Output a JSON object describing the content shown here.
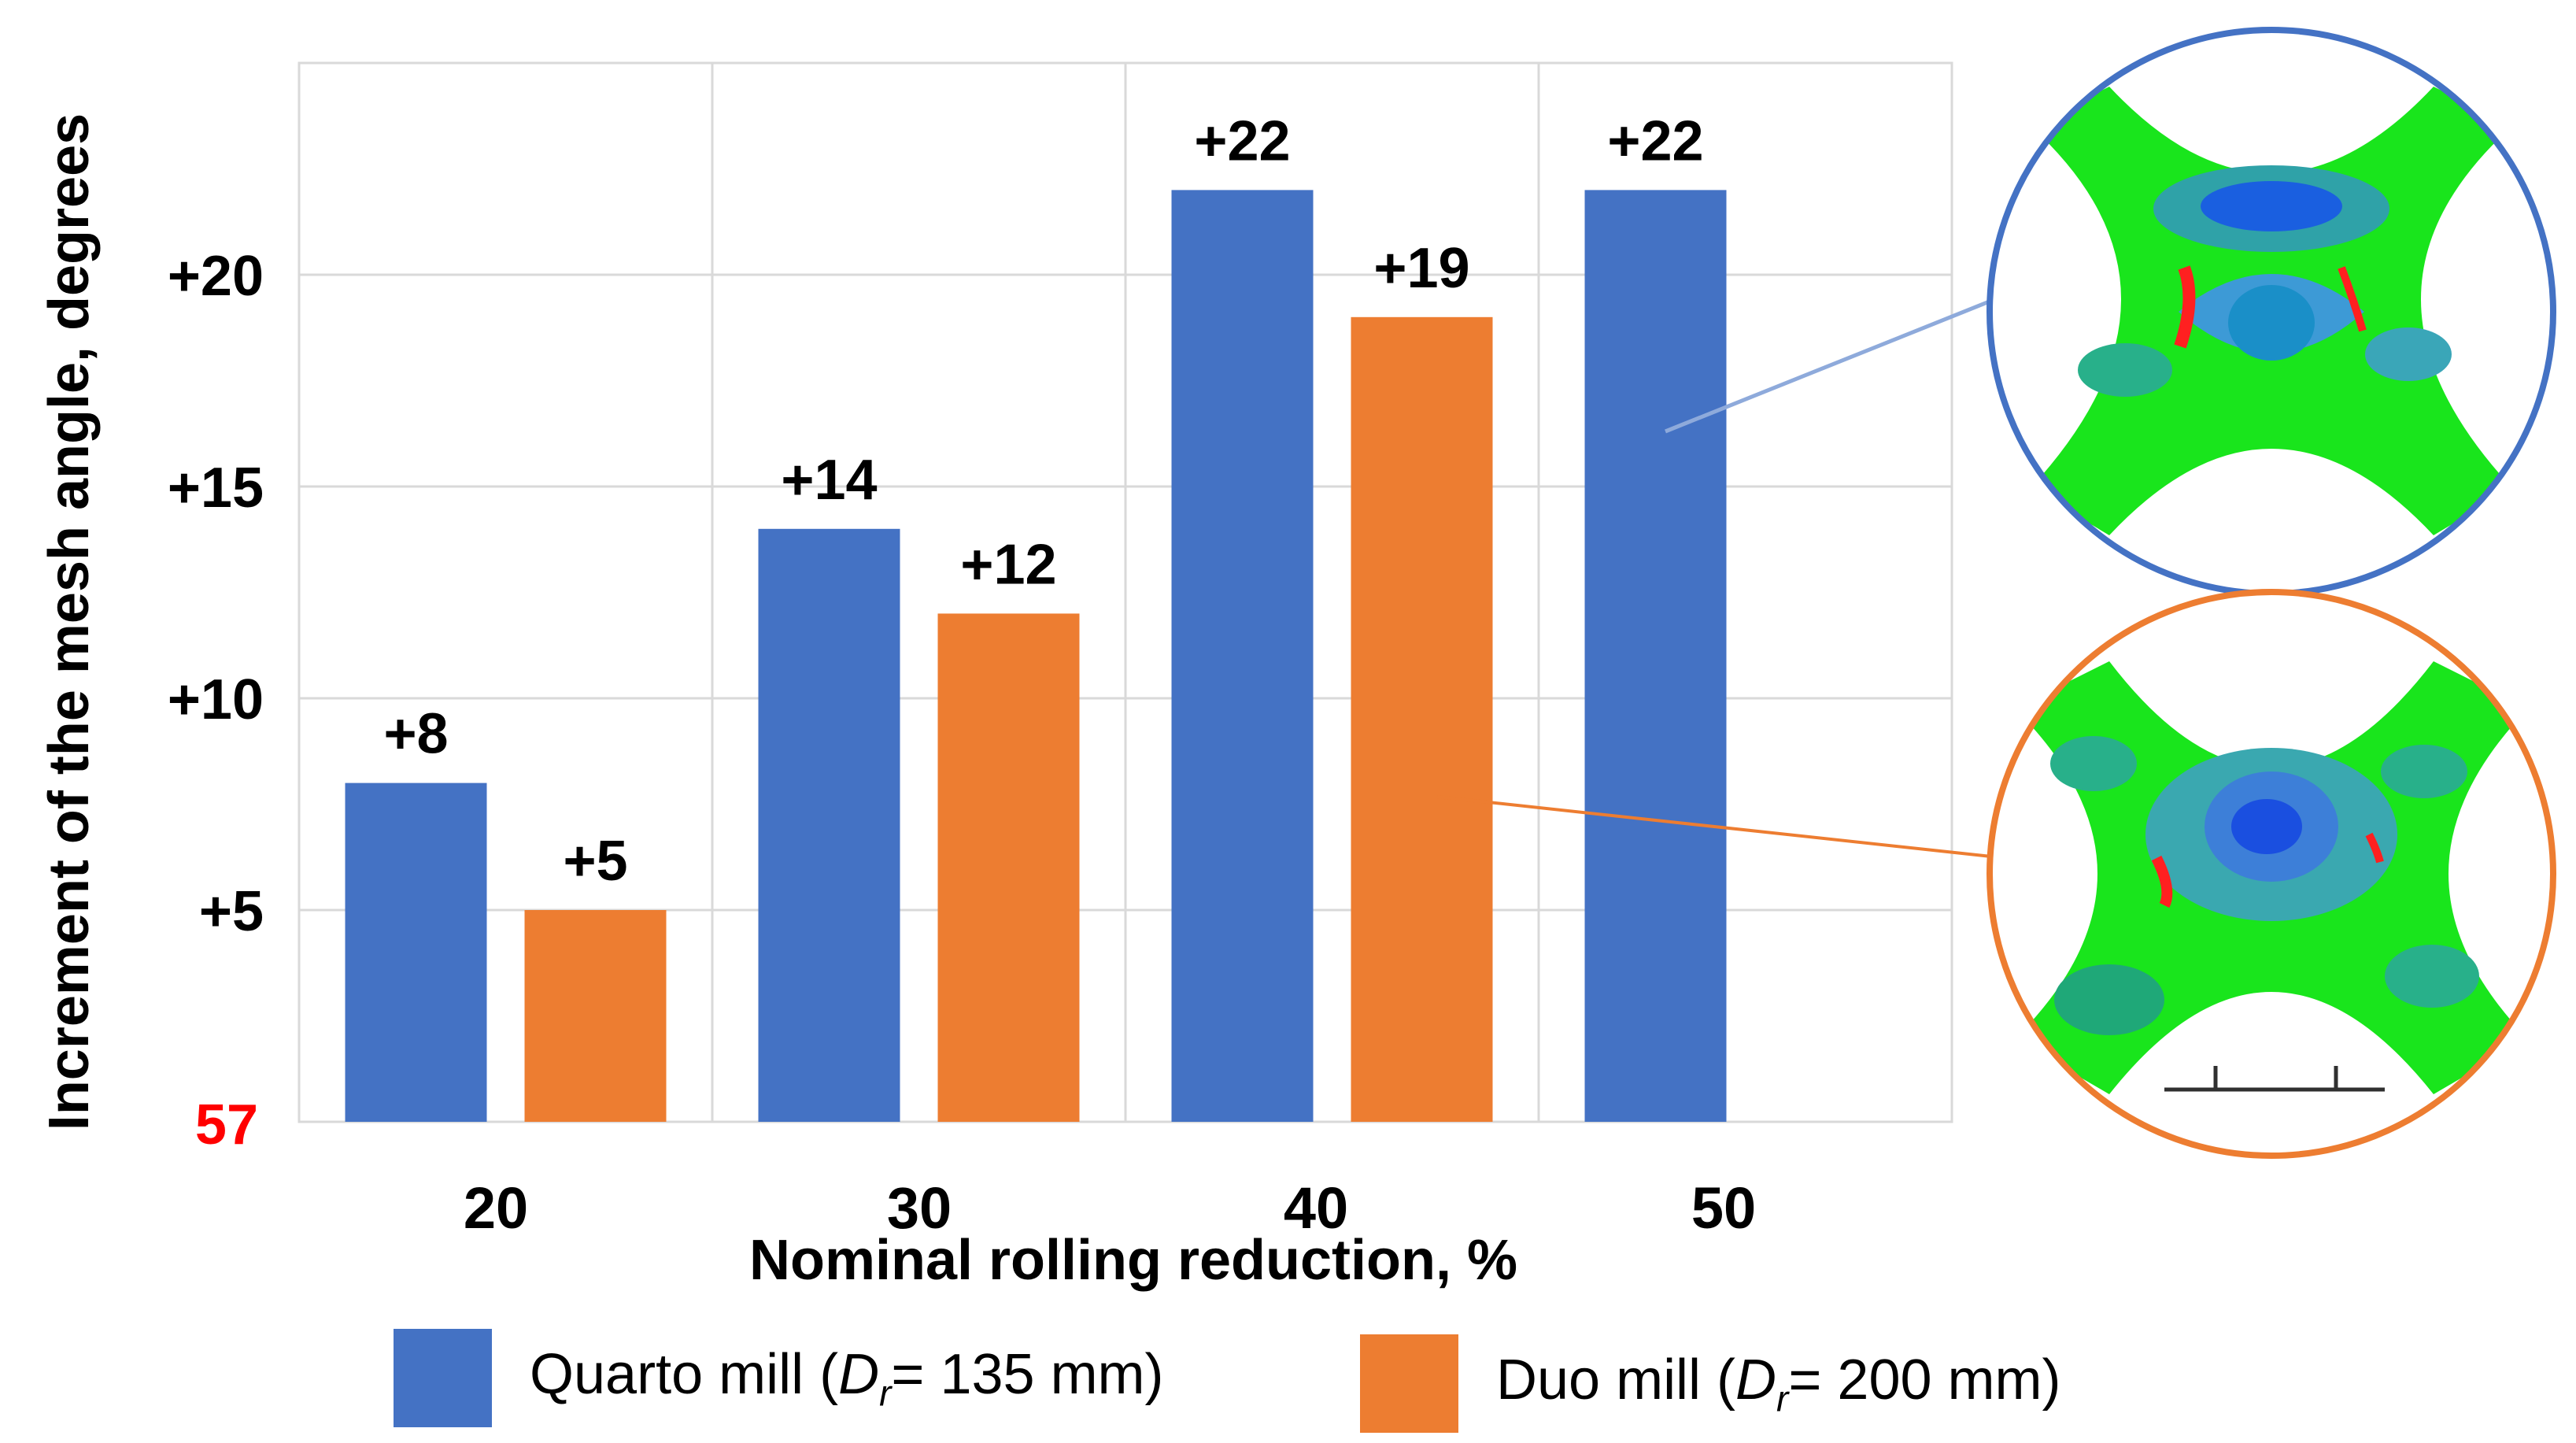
{
  "chart_data": {
    "type": "bar",
    "title": "",
    "xlabel": "Nominal rolling reduction, %",
    "ylabel": "Increment of the mesh angle, degrees",
    "categories": [
      "20",
      "30",
      "40",
      "50"
    ],
    "series": [
      {
        "name": "Quarto mill",
        "legend_prefix": "Quarto mill (",
        "legend_var": "D",
        "legend_sub": "r",
        "legend_suffix": "= 135 mm)",
        "color": "#4472C4",
        "values": [
          8,
          14,
          22,
          22
        ]
      },
      {
        "name": "Duo mill",
        "legend_prefix": "Duo mill (",
        "legend_var": "D",
        "legend_sub": "r",
        "legend_suffix": "= 200 mm)",
        "color": "#ED7D31",
        "values": [
          5,
          12,
          19,
          null
        ]
      }
    ],
    "ylim": [
      0,
      25
    ],
    "yticks": [
      5,
      10,
      15,
      20
    ],
    "ytick_labels": [
      "+5",
      "+10",
      "+15",
      "+20"
    ],
    "baseline_label": "57",
    "baseline_color": "#FF0000",
    "grid": true,
    "legend": "bottom",
    "insets": [
      {
        "name": "quarto-inset",
        "series": "Quarto mill",
        "border_color": "#4472C4"
      },
      {
        "name": "duo-inset",
        "series": "Duo mill",
        "border_color": "#ED7D31"
      }
    ]
  }
}
